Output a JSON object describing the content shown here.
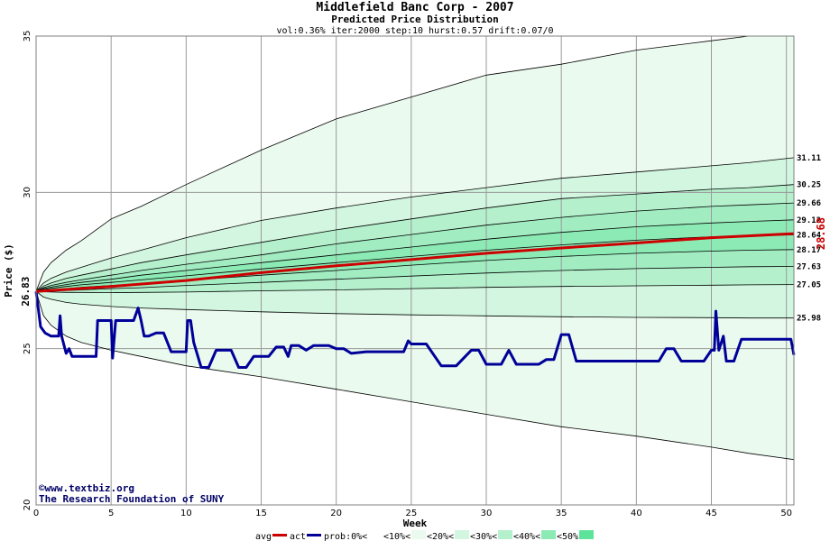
{
  "chart_data": {
    "type": "area",
    "title": "Middlefield Banc Corp - 2007",
    "subtitle": "Predicted Price Distribution",
    "params": "vol:0.36% iter:2000 step:10 hurst:0.57 drift:0.07/0",
    "xlabel": "Week",
    "ylabel": "Price ($)",
    "xlim": [
      0,
      50.5
    ],
    "ylim": [
      20,
      35
    ],
    "x_ticks": [
      0,
      5,
      10,
      15,
      20,
      25,
      30,
      35,
      40,
      45,
      50
    ],
    "y_ticks": [
      20,
      25,
      30,
      35
    ],
    "start_price": 26.83,
    "start_label": "26.83",
    "final_avg_label": "28.68",
    "band_x": [
      0,
      0.5,
      1,
      2,
      3,
      5,
      7,
      10,
      15,
      20,
      25,
      30,
      35,
      40,
      45,
      47.5,
      50.5
    ],
    "bands": [
      {
        "label": "",
        "values": [
          26.83,
          27.45,
          27.75,
          28.15,
          28.45,
          29.15,
          29.55,
          30.25,
          31.35,
          32.35,
          33.05,
          33.75,
          34.1,
          34.55,
          34.85,
          35.0,
          35.0
        ]
      },
      {
        "label": "31.11",
        "values": [
          26.83,
          27.1,
          27.25,
          27.45,
          27.6,
          27.9,
          28.15,
          28.55,
          29.1,
          29.5,
          29.85,
          30.15,
          30.45,
          30.65,
          30.85,
          30.95,
          31.11
        ]
      },
      {
        "label": "30.25",
        "values": [
          26.83,
          27.0,
          27.1,
          27.25,
          27.35,
          27.55,
          27.75,
          28.0,
          28.4,
          28.8,
          29.15,
          29.5,
          29.8,
          29.95,
          30.1,
          30.15,
          30.25
        ]
      },
      {
        "label": "29.66",
        "values": [
          26.83,
          26.95,
          27.02,
          27.12,
          27.2,
          27.35,
          27.5,
          27.7,
          28.0,
          28.35,
          28.65,
          28.95,
          29.2,
          29.4,
          29.55,
          29.6,
          29.66
        ]
      },
      {
        "label": "29.12",
        "values": [
          26.83,
          26.92,
          26.97,
          27.05,
          27.12,
          27.22,
          27.35,
          27.5,
          27.75,
          28.0,
          28.25,
          28.5,
          28.72,
          28.9,
          29.02,
          29.07,
          29.12
        ]
      },
      {
        "label": "28.64",
        "values": [
          26.83,
          26.89,
          26.93,
          26.99,
          27.04,
          27.12,
          27.2,
          27.33,
          27.55,
          27.75,
          27.95,
          28.15,
          28.32,
          28.47,
          28.58,
          28.61,
          28.64
        ]
      },
      {
        "label": "28.17",
        "values": [
          26.83,
          26.86,
          26.88,
          26.92,
          26.96,
          27.02,
          27.08,
          27.18,
          27.35,
          27.5,
          27.67,
          27.82,
          27.95,
          28.05,
          28.12,
          28.15,
          28.17
        ]
      },
      {
        "label": "27.63",
        "values": [
          26.83,
          26.84,
          26.85,
          26.86,
          26.88,
          26.92,
          26.95,
          27.02,
          27.12,
          27.22,
          27.32,
          27.42,
          27.5,
          27.56,
          27.6,
          27.62,
          27.63
        ]
      },
      {
        "label": "27.05",
        "values": [
          26.83,
          26.82,
          26.81,
          26.8,
          26.8,
          26.79,
          26.8,
          26.81,
          26.85,
          26.88,
          26.92,
          26.96,
          26.99,
          27.01,
          27.03,
          27.04,
          27.05
        ]
      },
      {
        "label": "25.98",
        "values": [
          26.83,
          26.65,
          26.58,
          26.48,
          26.42,
          26.35,
          26.3,
          26.25,
          26.18,
          26.12,
          26.08,
          26.05,
          26.02,
          26.0,
          25.99,
          25.98,
          25.98
        ]
      },
      {
        "label": "",
        "values": [
          26.83,
          26.05,
          25.75,
          25.4,
          25.2,
          24.95,
          24.75,
          24.45,
          24.1,
          23.7,
          23.3,
          22.9,
          22.5,
          22.2,
          21.85,
          21.65,
          21.45
        ]
      }
    ],
    "series": [
      {
        "name": "avg",
        "color": "#cc0000",
        "x": [
          0,
          5,
          10,
          15,
          20,
          25,
          30,
          35,
          40,
          45,
          50.5
        ],
        "values": [
          26.83,
          26.99,
          27.18,
          27.43,
          27.65,
          27.85,
          28.05,
          28.22,
          28.38,
          28.55,
          28.68
        ]
      },
      {
        "name": "act",
        "color": "#000099",
        "x": [
          0,
          0.3,
          0.6,
          1,
          1.5,
          1.6,
          1.7,
          2,
          2.2,
          2.4,
          2.6,
          3,
          4,
          4.1,
          4.3,
          5,
          5.1,
          5.3,
          5.4,
          5.6,
          6,
          6.5,
          6.8,
          7,
          7.2,
          7.5,
          8,
          8.5,
          9,
          9.2,
          9.5,
          10,
          10.1,
          10.3,
          10.5,
          11,
          11.5,
          12,
          12.5,
          13,
          13.5,
          14,
          14.5,
          15,
          15.5,
          16,
          16.5,
          16.8,
          17,
          17.5,
          18,
          18.5,
          19,
          19.5,
          20,
          20.5,
          21,
          22,
          23,
          24,
          24.5,
          24.8,
          25,
          26,
          27,
          27.5,
          28,
          29,
          29.5,
          30,
          31,
          31.5,
          32,
          33,
          33.5,
          34,
          34.2,
          34.5,
          35,
          35.5,
          36,
          37,
          38,
          39,
          40,
          41,
          41.5,
          42,
          42.5,
          43,
          44,
          44.5,
          45,
          45.2,
          45.3,
          45.5,
          45.8,
          46,
          46.5,
          47,
          48,
          49,
          50,
          50.3,
          50.5
        ],
        "values": [
          26.83,
          25.7,
          25.5,
          25.4,
          25.4,
          26.05,
          25.4,
          24.85,
          25.0,
          24.75,
          24.75,
          24.75,
          24.75,
          25.9,
          25.9,
          25.9,
          24.7,
          25.9,
          25.9,
          25.9,
          25.9,
          25.9,
          26.3,
          25.9,
          25.4,
          25.4,
          25.5,
          25.5,
          24.9,
          24.9,
          24.9,
          24.9,
          25.9,
          25.9,
          25.2,
          24.4,
          24.4,
          24.95,
          24.95,
          24.95,
          24.4,
          24.4,
          24.75,
          24.75,
          24.75,
          25.05,
          25.05,
          24.75,
          25.1,
          25.1,
          24.95,
          25.1,
          25.1,
          25.1,
          25.0,
          25.0,
          24.85,
          24.9,
          24.9,
          24.9,
          24.9,
          25.25,
          25.15,
          25.15,
          24.45,
          24.45,
          24.45,
          24.95,
          24.95,
          24.5,
          24.5,
          24.95,
          24.5,
          24.5,
          24.5,
          24.65,
          24.65,
          24.65,
          25.45,
          25.45,
          24.6,
          24.6,
          24.6,
          24.6,
          24.6,
          24.6,
          24.6,
          25.0,
          25.0,
          24.6,
          24.6,
          24.6,
          24.95,
          24.95,
          26.2,
          24.95,
          25.4,
          24.6,
          24.6,
          25.3,
          25.3,
          25.3,
          25.3,
          25.3,
          24.8
        ]
      }
    ],
    "legend": {
      "placement": "bottom-center",
      "items": [
        {
          "label": "avg",
          "type": "line",
          "color": "#cc0000"
        },
        {
          "label": "act",
          "type": "line",
          "color": "#000099"
        },
        {
          "label": "prob:0%<",
          "type": "swatch",
          "color": "#ffffff"
        },
        {
          "label": "<10%<",
          "type": "swatch",
          "color": "#eafaee"
        },
        {
          "label": "<20%<",
          "type": "swatch",
          "color": "#d2f6df"
        },
        {
          "label": "<30%<",
          "type": "swatch",
          "color": "#b4f0cc"
        },
        {
          "label": "<40%<",
          "type": "swatch",
          "color": "#8ceab4"
        },
        {
          "label": "<50%",
          "type": "swatch",
          "color": "#5ee49a"
        }
      ]
    },
    "band_colors": [
      "#eafaee",
      "#d2f6df",
      "#b4f0cc",
      "#a2ecc2",
      "#8ceab4",
      "#8ceab4",
      "#a2ecc2",
      "#b4f0cc",
      "#d2f6df",
      "#eafaee"
    ],
    "grid": true
  },
  "credits": {
    "line1": "©www.textbiz.org",
    "line2": "The Research Foundation of SUNY"
  }
}
